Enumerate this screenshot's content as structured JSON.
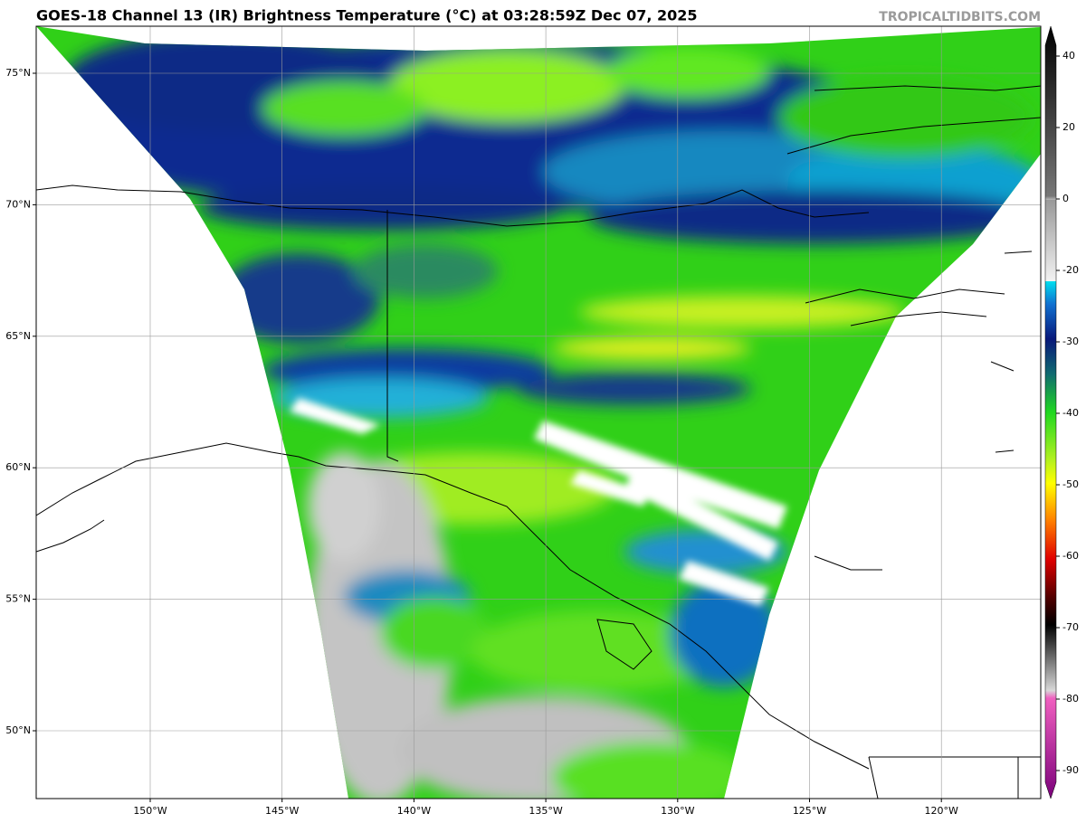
{
  "header": {
    "title": "GOES-18 Channel 13 (IR) Brightness Temperature (°C) at 03:28:59Z Dec 07, 2025",
    "credit": "TROPICALTIDBITS.COM"
  },
  "map": {
    "lat_ticks": [
      {
        "value": 75,
        "label": "75°N"
      },
      {
        "value": 70,
        "label": "70°N"
      },
      {
        "value": 65,
        "label": "65°N"
      },
      {
        "value": 60,
        "label": "60°N"
      },
      {
        "value": 55,
        "label": "55°N"
      },
      {
        "value": 50,
        "label": "50°N"
      }
    ],
    "lon_ticks": [
      {
        "value": -150,
        "label": "150°W"
      },
      {
        "value": -145,
        "label": "145°W"
      },
      {
        "value": -140,
        "label": "140°W"
      },
      {
        "value": -135,
        "label": "135°W"
      },
      {
        "value": -130,
        "label": "130°W"
      },
      {
        "value": -125,
        "label": "125°W"
      },
      {
        "value": -120,
        "label": "120°W"
      }
    ]
  },
  "colorbar": {
    "ticks": [
      40,
      20,
      0,
      -20,
      -30,
      -40,
      -50,
      -60,
      -70,
      -80,
      -90
    ]
  }
}
